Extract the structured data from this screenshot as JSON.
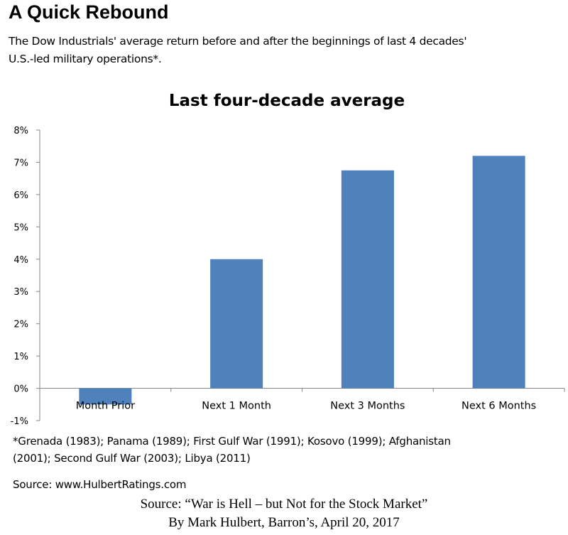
{
  "header": {
    "title": "A Quick Rebound",
    "subtitle_lines": [
      "The Dow Industrials' average return before and after the beginnings of last 4 decades'",
      "U.S.-led military operations*."
    ]
  },
  "chart_data": {
    "type": "bar",
    "title": "Last four-decade average",
    "categories": [
      "Month Prior",
      "Next 1 Month",
      "Next 3 Months",
      "Next 6 Months"
    ],
    "values": [
      -0.5,
      4.0,
      6.75,
      7.2
    ],
    "ylim": [
      -1,
      8
    ],
    "y_ticks": [
      -1,
      0,
      1,
      2,
      3,
      4,
      5,
      6,
      7,
      8
    ],
    "y_tick_labels": [
      "-1%",
      "0%",
      "1%",
      "2%",
      "3%",
      "4%",
      "5%",
      "6%",
      "7%",
      "8%"
    ],
    "xlabel": "",
    "ylabel": "",
    "grid": false,
    "legend": "none",
    "bar_color": "#4f81bd"
  },
  "footnote_lines": [
    "*Grenada (1983); Panama (1989); First Gulf War (1991); Kosovo (1999); Afghanistan",
    "(2001); Second Gulf War (2003); Libya (2011)"
  ],
  "source_web": "Source: www.HulbertRatings.com",
  "credit": {
    "line1": "Source: “War is Hell – but Not for the Stock Market”",
    "line2": "By Mark Hulbert, Barron’s, April 20, 2017"
  }
}
